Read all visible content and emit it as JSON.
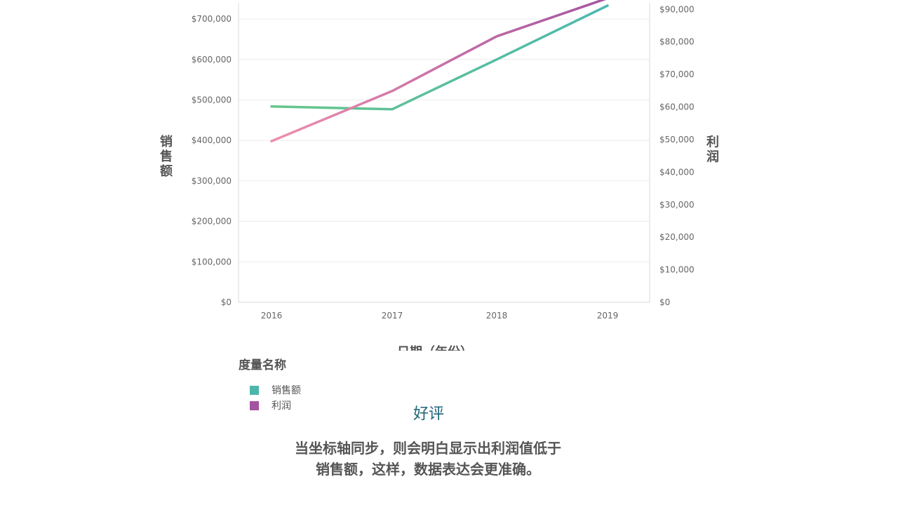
{
  "chart_data": {
    "type": "line",
    "x": [
      "2016",
      "2017",
      "2018",
      "2019"
    ],
    "xlabel": "日期（年份）",
    "ylabel_left": "销售额",
    "ylabel_right": "利润",
    "ylim_left": [
      0,
      740000
    ],
    "ylim_right": [
      0,
      92000
    ],
    "yticks_left": [
      "$0",
      "$100,000",
      "$200,000",
      "$300,000",
      "$400,000",
      "$500,000",
      "$600,000",
      "$700,000"
    ],
    "yticks_left_values": [
      0,
      100000,
      200000,
      300000,
      400000,
      500000,
      600000,
      700000
    ],
    "yticks_right": [
      "$0",
      "$10,000",
      "$20,000",
      "$30,000",
      "$40,000",
      "$50,000",
      "$60,000",
      "$70,000",
      "$80,000",
      "$90,000"
    ],
    "yticks_right_values": [
      0,
      10000,
      20000,
      30000,
      40000,
      50000,
      60000,
      70000,
      80000,
      90000
    ],
    "grid": true,
    "legend_title": "度量名称",
    "legend_position": "bottom-left",
    "series": [
      {
        "name": "销售额",
        "axis": "left",
        "color": "#4db6ac",
        "colors": [
          "#66c68a",
          "#4db8b0"
        ],
        "values": [
          484000,
          477000,
          600000,
          733000
        ]
      },
      {
        "name": "利润",
        "axis": "right",
        "color": "#a355a0",
        "colors": [
          "#ee8fae",
          "#a355a0"
        ],
        "values": [
          49500,
          64900,
          81700,
          93400
        ]
      }
    ]
  },
  "caption": {
    "title": "好评",
    "body_line1": "当坐标轴同步，则会明白显示出利润值低于",
    "body_line2": "销售额，这样，数据表达会更准确。"
  }
}
